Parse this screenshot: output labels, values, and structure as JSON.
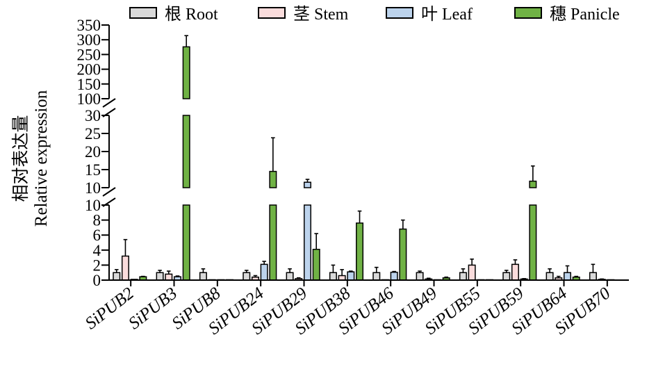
{
  "chart_data": {
    "type": "bar",
    "ylabel_cn": "相对表达量",
    "ylabel_en": "Relative expression",
    "categories": [
      "SiPUB2",
      "SiPUB3",
      "SiPUB8",
      "SiPUB24",
      "SiPUB29",
      "SiPUB38",
      "SiPUB46",
      "SiPUB49",
      "SiPUB55",
      "SiPUB59",
      "SiPUB64",
      "SiPUB70"
    ],
    "series": [
      {
        "name": "根 Root",
        "color": "#d9d9d9",
        "values": [
          1.0,
          1.0,
          1.0,
          1.0,
          1.0,
          1.0,
          1.0,
          1.0,
          1.0,
          1.0,
          1.0,
          1.0
        ],
        "errors": [
          0.4,
          0.3,
          0.5,
          0.3,
          0.5,
          1.0,
          0.7,
          0.2,
          0.5,
          0.3,
          0.5,
          1.1
        ]
      },
      {
        "name": "茎 Stem",
        "color": "#fadcdc",
        "values": [
          3.2,
          0.8,
          0.05,
          0.4,
          0.2,
          0.6,
          0.05,
          0.15,
          2.0,
          2.1,
          0.3,
          0.1
        ],
        "errors": [
          2.2,
          0.4,
          0.0,
          0.2,
          0.1,
          0.8,
          0.0,
          0.1,
          0.8,
          0.6,
          0.2,
          0.05
        ]
      },
      {
        "name": "叶 Leaf",
        "color": "#bcd3ec",
        "values": [
          0.1,
          0.45,
          0.05,
          2.1,
          11.5,
          1.1,
          1.05,
          0.05,
          0.05,
          0.15,
          1.0,
          0.05
        ],
        "errors": [
          0.0,
          0.1,
          0.0,
          0.4,
          0.8,
          0.1,
          0.1,
          0.0,
          0.0,
          0.05,
          0.9,
          0.0
        ]
      },
      {
        "name": "穗 Panicle",
        "color": "#70b245",
        "values": [
          0.45,
          276,
          0.05,
          14.5,
          4.1,
          7.6,
          6.8,
          0.3,
          0.05,
          11.8,
          0.4,
          0.0
        ],
        "errors": [
          0.05,
          38,
          0.0,
          9.3,
          2.1,
          1.6,
          1.2,
          0.1,
          0.0,
          4.2,
          0.1,
          0.0
        ]
      }
    ],
    "y_segments": [
      {
        "range": [
          0,
          10
        ],
        "ticks": [
          0,
          2,
          4,
          6,
          8,
          10
        ]
      },
      {
        "range": [
          10,
          30
        ],
        "ticks": [
          10,
          15,
          20,
          25,
          30
        ]
      },
      {
        "range": [
          100,
          350
        ],
        "ticks": [
          100,
          150,
          200,
          250,
          300,
          350
        ]
      }
    ],
    "legend_position": "top",
    "grid": false
  }
}
